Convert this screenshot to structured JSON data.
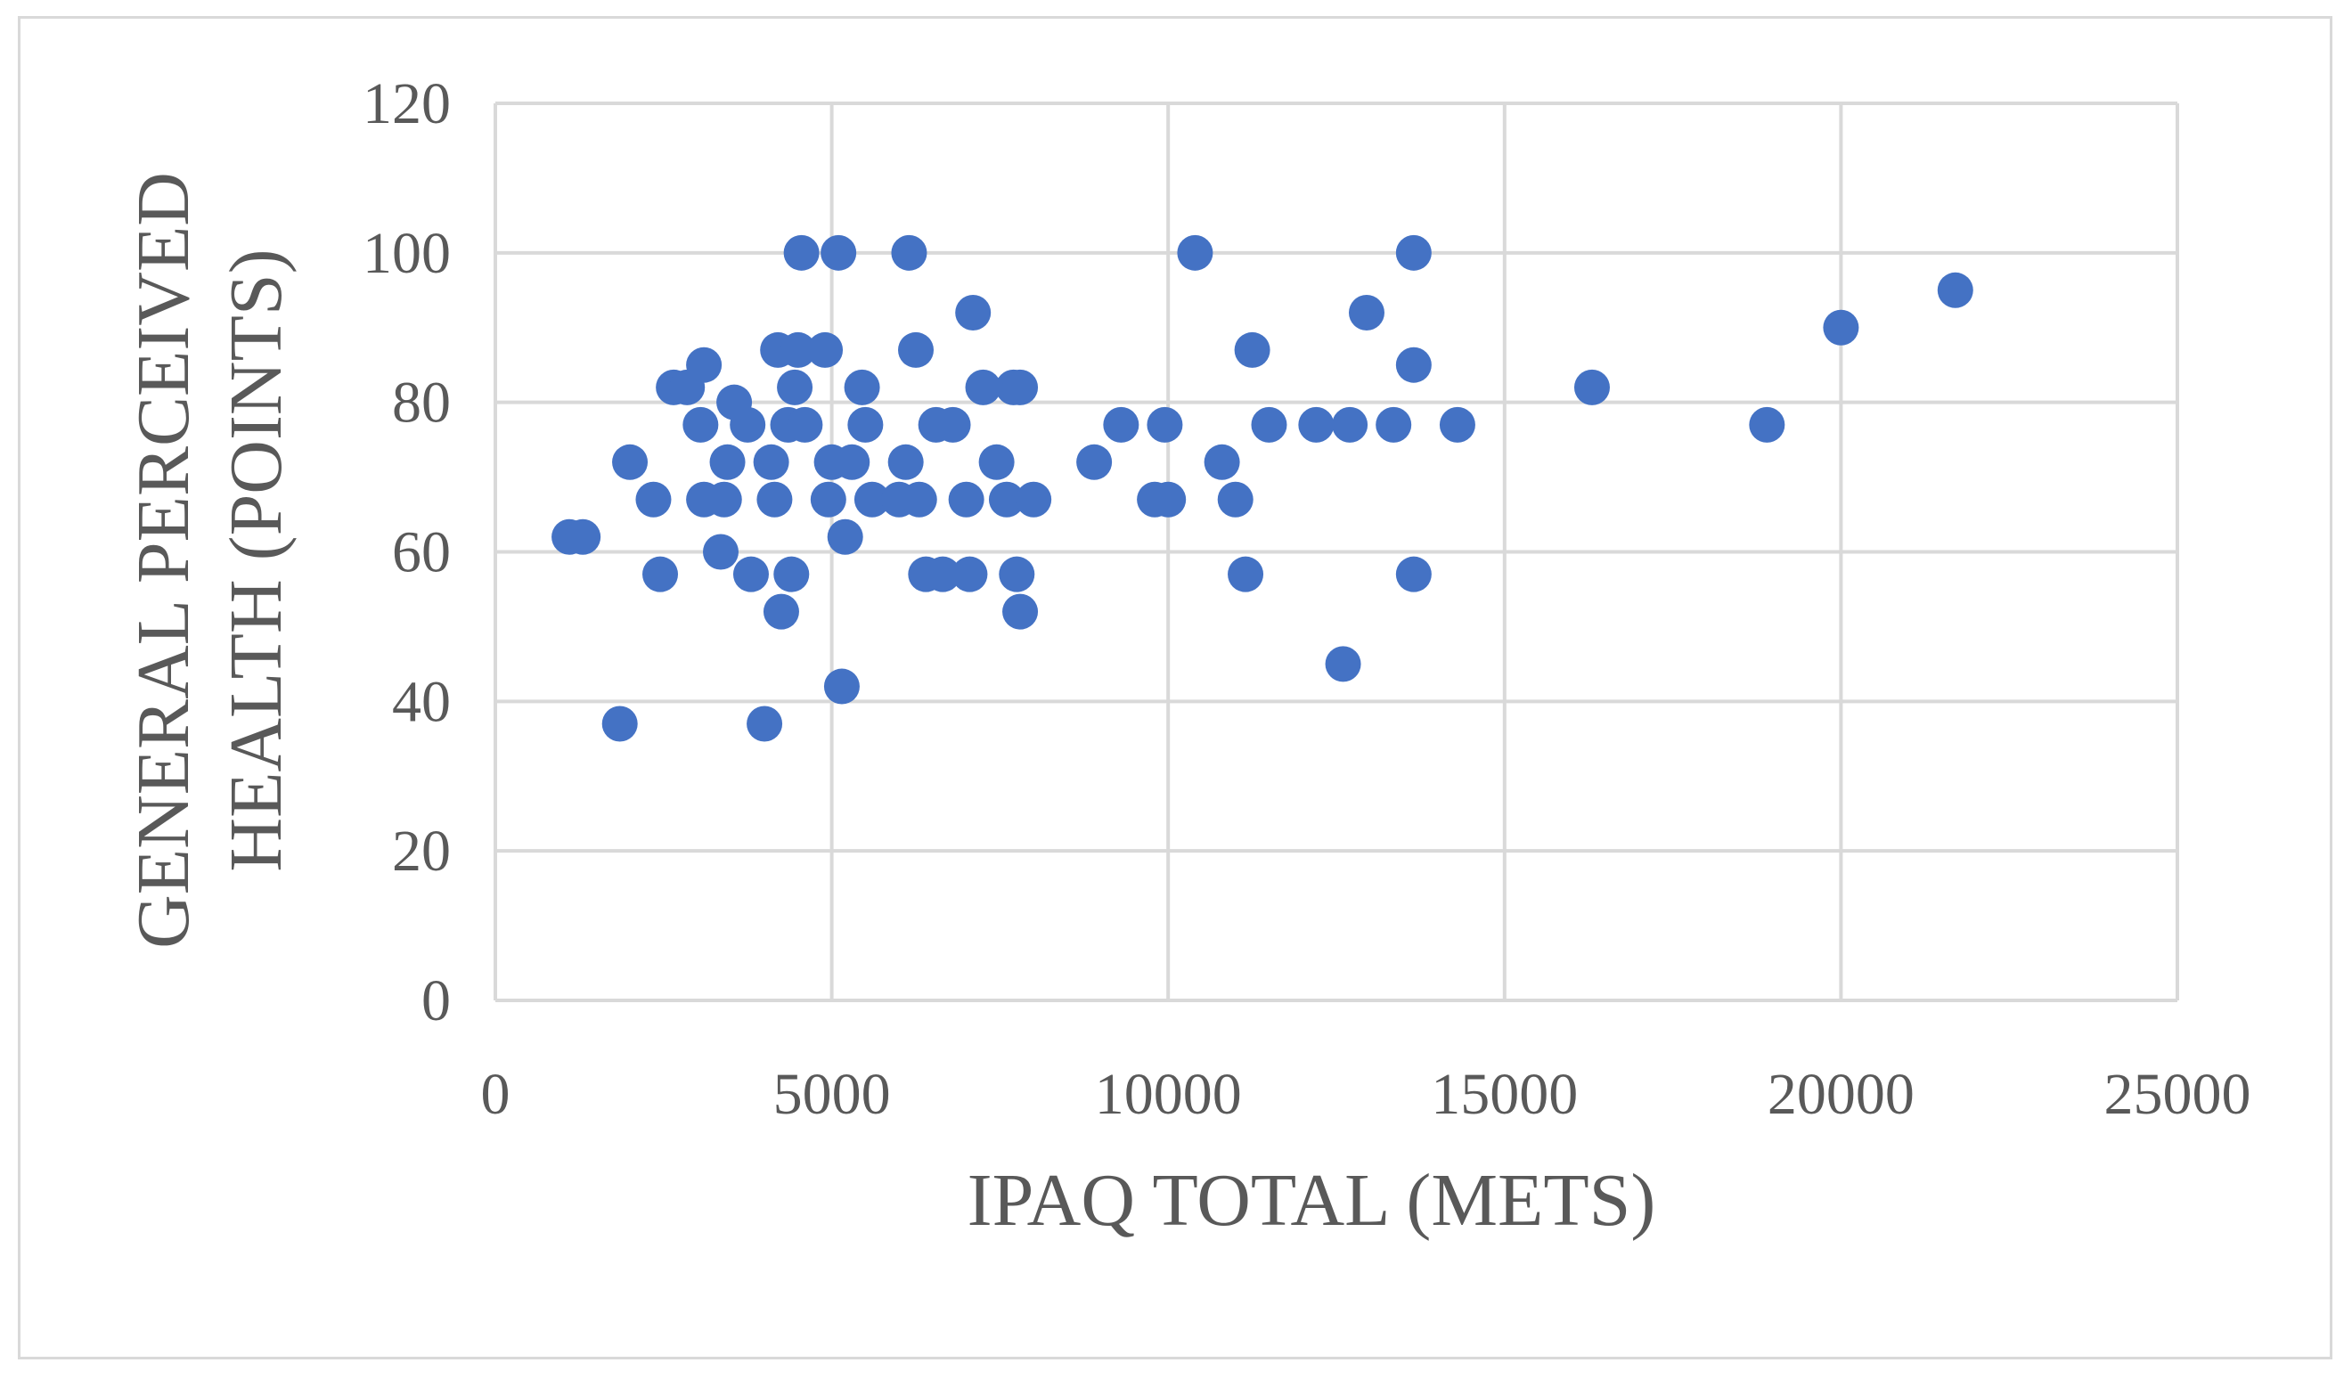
{
  "chart_data": {
    "type": "scatter",
    "title": "",
    "xlabel": "IPAQ TOTAL (METS)",
    "ylabel_lines": [
      "GENERAL PERCEIVED",
      "HEALTH (POINTS)"
    ],
    "xlim": [
      0,
      25000
    ],
    "ylim": [
      0,
      120
    ],
    "x_ticks": [
      0,
      5000,
      10000,
      15000,
      20000,
      25000
    ],
    "y_ticks": [
      0,
      20,
      40,
      60,
      80,
      100,
      120
    ],
    "x_tick_labels": [
      "0",
      "5000",
      "10000",
      "15000",
      "20000",
      "25000"
    ],
    "y_tick_labels": [
      "0",
      "20",
      "40",
      "60",
      "80",
      "100",
      "120"
    ],
    "grid": true,
    "legend": "none",
    "marker_color": "#4472C4",
    "series": [
      {
        "points": [
          [
            1100,
            62
          ],
          [
            1300,
            62
          ],
          [
            1850,
            37
          ],
          [
            2000,
            72
          ],
          [
            2350,
            67
          ],
          [
            2450,
            57
          ],
          [
            2650,
            82
          ],
          [
            2850,
            82
          ],
          [
            3050,
            77
          ],
          [
            3100,
            67
          ],
          [
            3100,
            85
          ],
          [
            3350,
            60
          ],
          [
            3400,
            67
          ],
          [
            3450,
            72
          ],
          [
            3550,
            80
          ],
          [
            3750,
            77
          ],
          [
            3800,
            57
          ],
          [
            4000,
            37
          ],
          [
            4100,
            72
          ],
          [
            4150,
            67
          ],
          [
            4200,
            87
          ],
          [
            4250,
            52
          ],
          [
            4350,
            77
          ],
          [
            4400,
            57
          ],
          [
            4450,
            82
          ],
          [
            4500,
            87
          ],
          [
            4550,
            100
          ],
          [
            4600,
            77
          ],
          [
            4900,
            87
          ],
          [
            4950,
            67
          ],
          [
            5000,
            72
          ],
          [
            5100,
            100
          ],
          [
            5150,
            42
          ],
          [
            5200,
            62
          ],
          [
            5300,
            72
          ],
          [
            5450,
            82
          ],
          [
            5500,
            77
          ],
          [
            5600,
            67
          ],
          [
            6000,
            67
          ],
          [
            6100,
            72
          ],
          [
            6150,
            100
          ],
          [
            6250,
            87
          ],
          [
            6300,
            67
          ],
          [
            6400,
            57
          ],
          [
            6550,
            77
          ],
          [
            6650,
            57
          ],
          [
            6800,
            77
          ],
          [
            7000,
            67
          ],
          [
            7050,
            57
          ],
          [
            7100,
            92
          ],
          [
            7250,
            82
          ],
          [
            7450,
            72
          ],
          [
            7600,
            67
          ],
          [
            7700,
            82
          ],
          [
            7750,
            57
          ],
          [
            7800,
            52
          ],
          [
            7800,
            82
          ],
          [
            8000,
            67
          ],
          [
            8900,
            72
          ],
          [
            9300,
            77
          ],
          [
            9800,
            67
          ],
          [
            9950,
            77
          ],
          [
            10000,
            67
          ],
          [
            10400,
            100
          ],
          [
            10800,
            72
          ],
          [
            11000,
            67
          ],
          [
            11150,
            57
          ],
          [
            11250,
            87
          ],
          [
            11500,
            77
          ],
          [
            12200,
            77
          ],
          [
            12600,
            45
          ],
          [
            12700,
            77
          ],
          [
            12950,
            92
          ],
          [
            13350,
            77
          ],
          [
            13650,
            57
          ],
          [
            13650,
            85
          ],
          [
            13650,
            100
          ],
          [
            14300,
            77
          ],
          [
            16300,
            82
          ],
          [
            18900,
            77
          ],
          [
            20000,
            90
          ],
          [
            21700,
            95
          ]
        ]
      }
    ]
  }
}
